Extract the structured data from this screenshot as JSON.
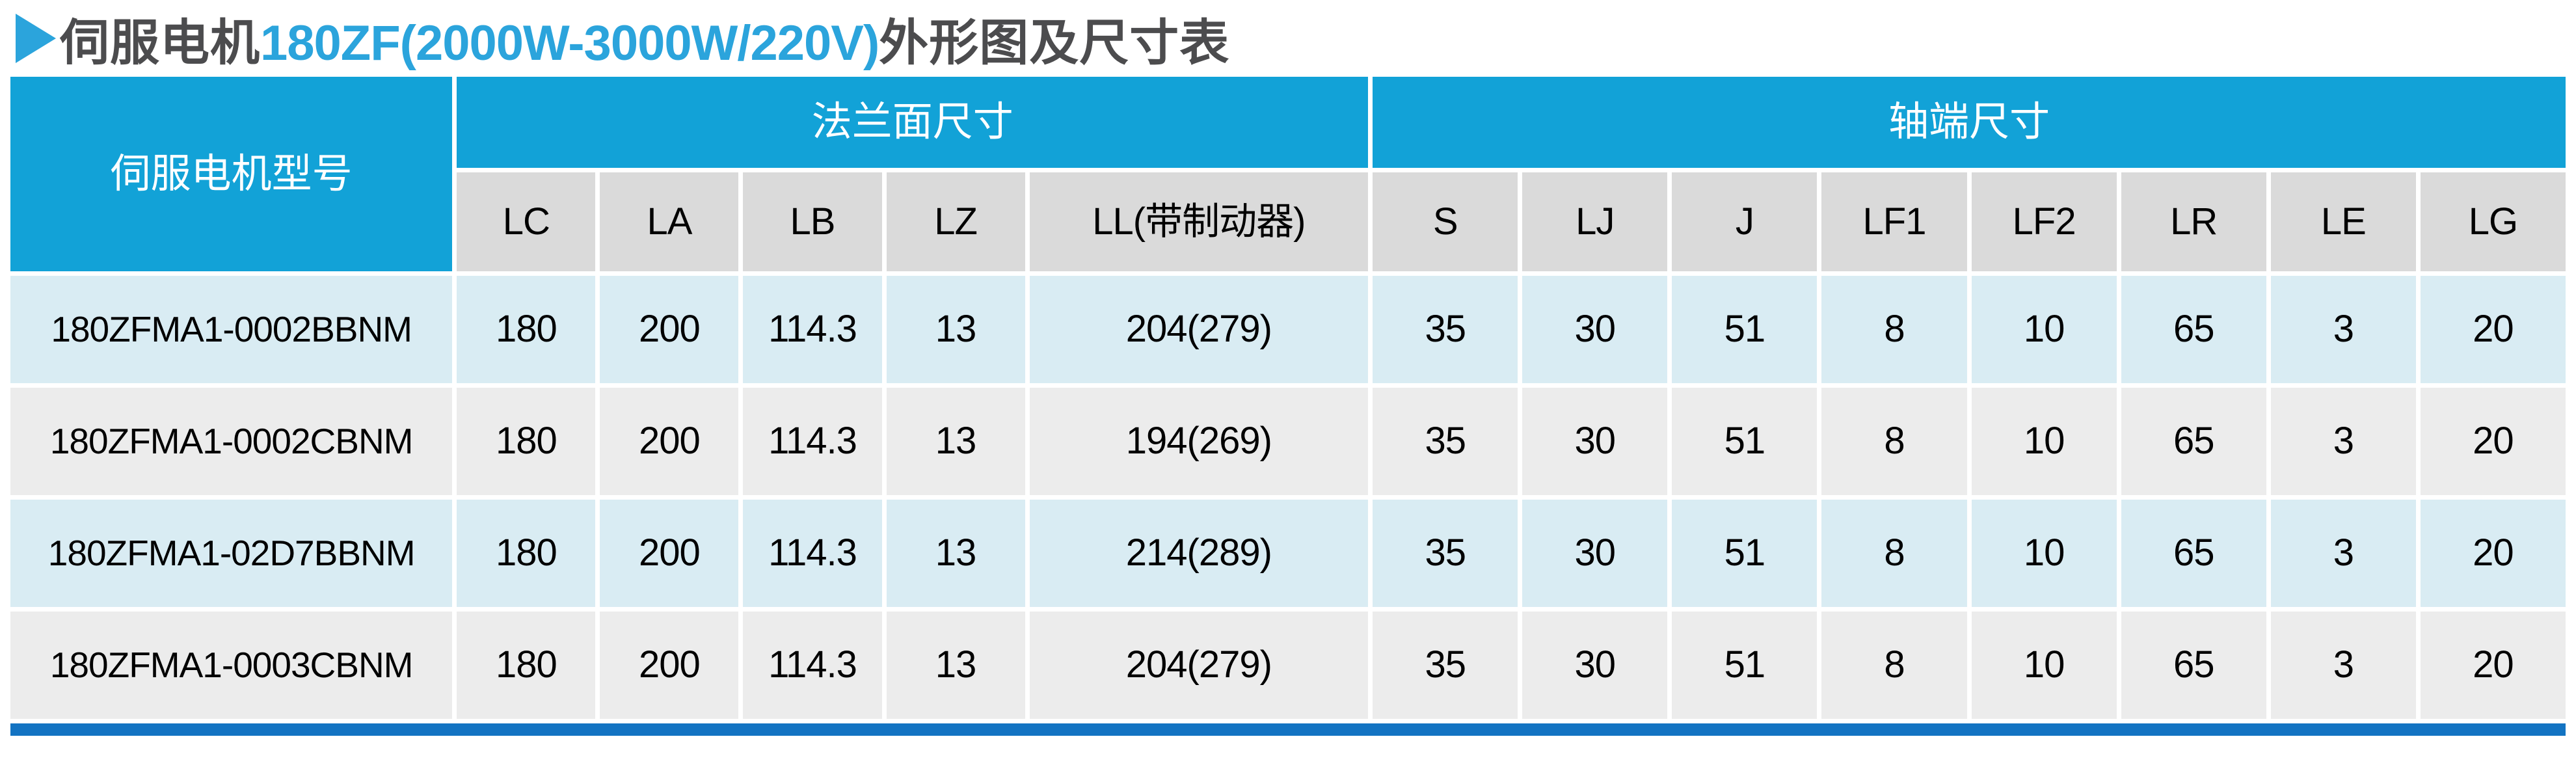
{
  "title": {
    "prefix": "伺服电机",
    "model_range": "180ZF(2000W-3000W/220V)",
    "suffix": "外形图及尺寸表"
  },
  "colors": {
    "header_blue": "#12a2d7",
    "header_gray": "#dadada",
    "row_cyan": "#d9ecf3",
    "row_gray": "#ececec",
    "bottom_bar_blue": "#1373c2",
    "title_dark": "#4c4c4e",
    "title_blue": "#2ba4dc"
  },
  "table": {
    "model_header": "伺服电机型号",
    "groups": [
      {
        "label": "法兰面尺寸",
        "span": 5
      },
      {
        "label": "轴端尺寸",
        "span": 8
      }
    ],
    "columns": [
      "LC",
      "LA",
      "LB",
      "LZ",
      "LL(带制动器)",
      "S",
      "LJ",
      "J",
      "LF1",
      "LF2",
      "LR",
      "LE",
      "LG"
    ],
    "rows": [
      {
        "model": "180ZFMA1-0002BBNM",
        "values": [
          "180",
          "200",
          "114.3",
          "13",
          "204(279)",
          "35",
          "30",
          "51",
          "8",
          "10",
          "65",
          "3",
          "20"
        ]
      },
      {
        "model": "180ZFMA1-0002CBNM",
        "values": [
          "180",
          "200",
          "114.3",
          "13",
          "194(269)",
          "35",
          "30",
          "51",
          "8",
          "10",
          "65",
          "3",
          "20"
        ]
      },
      {
        "model": "180ZFMA1-02D7BBNM",
        "values": [
          "180",
          "200",
          "114.3",
          "13",
          "214(289)",
          "35",
          "30",
          "51",
          "8",
          "10",
          "65",
          "3",
          "20"
        ]
      },
      {
        "model": "180ZFMA1-0003CBNM",
        "values": [
          "180",
          "200",
          "114.3",
          "13",
          "204(279)",
          "35",
          "30",
          "51",
          "8",
          "10",
          "65",
          "3",
          "20"
        ]
      }
    ]
  }
}
